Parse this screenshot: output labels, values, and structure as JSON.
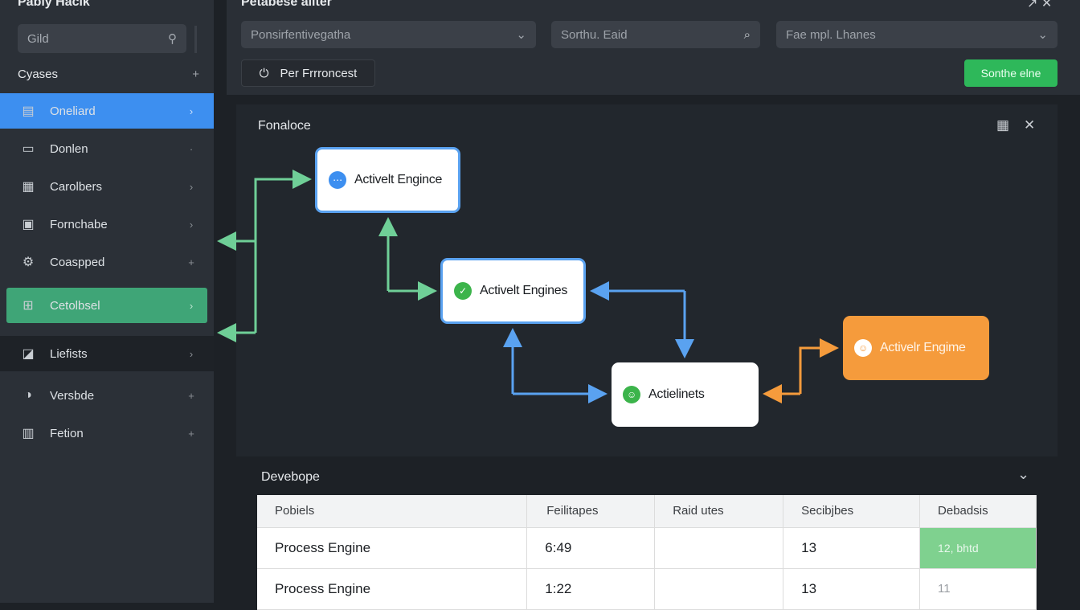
{
  "sidebar": {
    "title": "Pabiy Hacik",
    "search": {
      "placeholder": "Gild",
      "icon": "search-user-icon"
    },
    "section": {
      "label": "Cyases",
      "action": "+"
    },
    "items": [
      {
        "label": "Oneliard",
        "icon": "clipboard-icon",
        "chevron": "›",
        "state": "active-blue"
      },
      {
        "label": "Donlen",
        "icon": "message-icon",
        "chevron": "·"
      },
      {
        "label": "Carolbers",
        "icon": "grid-icon",
        "chevron": "›"
      },
      {
        "label": "Fornchabe",
        "icon": "monitor-icon",
        "chevron": "›"
      },
      {
        "label": "Coaspped",
        "icon": "gear-icon",
        "chevron": "+"
      },
      {
        "label": "Cetolbsel",
        "icon": "table-icon",
        "chevron": "›",
        "state": "active-green"
      },
      {
        "label": "Liefists",
        "icon": "edit-icon",
        "chevron": "›",
        "state": "dark"
      },
      {
        "label": "Versbde",
        "icon": "toggle-icon",
        "chevron": "+"
      },
      {
        "label": "Fetion",
        "icon": "building-icon",
        "chevron": "+"
      }
    ]
  },
  "topbar": {
    "title": "Petabese ailter",
    "dropdown1": "Ponsirfentivegatha",
    "search": "Sorthu. Eaid",
    "dropdown2": "Fae mpl. Lhanes",
    "perf_button": "Per Frrroncest",
    "submit_button": "Sonthe elne",
    "window_icons": [
      "expand-icon",
      "close-icon"
    ]
  },
  "diagram": {
    "title": "Fonaloce",
    "nodes": [
      {
        "label": "Activelt Engince",
        "icon_color": "#3d8ff0"
      },
      {
        "label": "Activelt Engines",
        "icon_color": "#3cb44b"
      },
      {
        "label": "Actielinets",
        "icon_color": "#3cb44b"
      },
      {
        "label": "Activelr Engime",
        "icon_color": "#ffffff"
      }
    ],
    "colors": {
      "green": "#6fcf97",
      "blue": "#5aa2f0",
      "orange": "#f59b3c"
    }
  },
  "table": {
    "title": "Devebope",
    "headers": [
      "Pobiels",
      "Feilitapes",
      "Raid utes",
      "Secibjbes",
      "Debadsis"
    ],
    "rows": [
      [
        "Process Engine",
        "6:49",
        "",
        "13",
        "12, bhtd"
      ],
      [
        "Process Engine",
        "1:22",
        "",
        "13",
        "11"
      ]
    ],
    "highlight_color": "#7fd18f"
  }
}
